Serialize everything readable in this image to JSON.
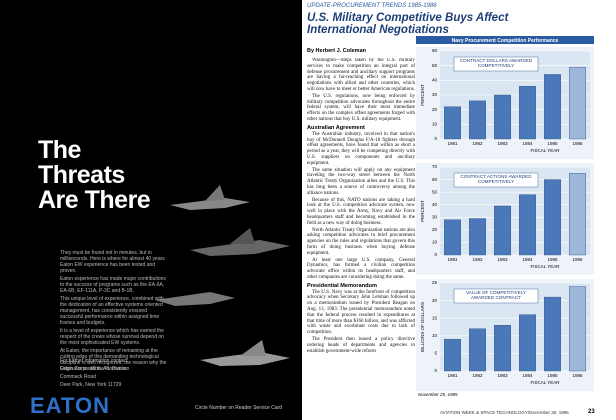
{
  "ad": {
    "headline": [
      "The",
      "Threats",
      "Are There"
    ],
    "body": [
      "They must be found not in minutes, but in milliseconds. Here is where for almost 40 years Eaton EW experience has been tested and proven.",
      "Eaton experience has made major contributions to the success of programs such as the EA-6A, EA-6B, EF-111A, P-3C and B-1B.",
      "This unique level of experience, combined with the dedication of an effective systems oriented management, has consistently ensured successful performance within assigned time frames and budgets.",
      "It is a level of experience which has earned the respect of the crews whose survival depend on the most sophisticated EW systems.",
      "At Eaton, the importance of remaining at the cutting edge of this demanding technological discipline is well recognized, the reason why the Originator is still the Innovator."
    ],
    "contact": [
      "For further information contact:",
      "Eaton Corporation, AIL Division",
      "Commack Road",
      "Deer Park, New York 11729"
    ],
    "logo": "EATON",
    "footer": "Circle Number on Reader Service Card"
  },
  "article": {
    "kicker": "UPDATE-PROCUREMENT TRENDS 1985-1986",
    "title": "U.S. Military Competitive Buys Affect International Negotiations",
    "byline": "By Herbert J. Coleman",
    "blocks": [
      {
        "text": "Washington—Steps taken by the U.S. military services to make competition an integral part of defense procurement and ancillary support programs are having a far-reaching effect on international negotiations with allied and other countries, which will now have to meet or better American regulations."
      },
      {
        "text": "The U.S. regulations, now being enforced by military competition advocates throughout the entire federal system, will have their most immediate effects on the complex offset agreements forged with other nations that buy U.S. military equipment."
      },
      {
        "heading": "Australian Agreement"
      },
      {
        "text": "The Australian industry, involved in that nation's buy of McDonnell Douglas F/A-18 fighters through offset agreements, have found that within as short a period as a year, they will be competing directly with U.S. suppliers on components and ancillary equipment."
      },
      {
        "text": "The same situation will apply on any equipment traveling the two-way street between the North Atlantic Treaty Organization allies and the U.S. This has long been a source of controversy among the alliance nations."
      },
      {
        "text": "Because of this, NATO nations are taking a hard look at the U.S. competition advocate system, now well in place with the Army, Navy and Air Force headquarters staff and becoming established in the field as a new way of doing business."
      },
      {
        "text": "North Atlantic Treaty Organization nations are also asking competition advocates to brief procurement agencies on the rules and regulations that govern this form of doing business when buying defense equipment."
      },
      {
        "text": "At least one large U.S. company, General Dynamics, has formed a civilian competition advocate office within its headquarters staff, and other companies are considering doing the same."
      },
      {
        "heading": "Presidential Memorandum"
      },
      {
        "text": "The U.S. Navy was at the forefront of competition advocacy when Secretary John Lehman followed up on a memorandum issued by President Reagan on Aug. 13, 1983. The presidential memorandum noted that the federal process resulted in expenditures at that time of more than $160 billion, and was afflicted with waste and exorbitant costs due to lack of competition."
      },
      {
        "text": "The President then issued a policy directive ordering heads of departments and agencies to establish government-wide reform"
      }
    ]
  },
  "figure": {
    "title": "Navy Procurement Competition Performance",
    "date": "November 25, 1985",
    "charts": [
      {
        "type": "bar",
        "label": "CONTRACT DOLLARS AWARDED COMPETITIVELY",
        "y_label": "PERCENT",
        "x_label": "FISCAL YEAR",
        "categories": [
          "1981",
          "1982",
          "1983",
          "1984",
          "1985",
          "1986"
        ],
        "values": [
          22,
          26,
          30,
          36,
          44,
          49
        ],
        "colors": [
          "#4a78b8",
          "#4a78b8",
          "#4a78b8",
          "#4a78b8",
          "#4a78b8",
          "#9fb8da"
        ],
        "ylim": [
          0,
          60
        ],
        "yticks": [
          0,
          10,
          20,
          30,
          40,
          50,
          60
        ]
      },
      {
        "type": "bar",
        "label": "CONTRACT ACTIONS AWARDED COMPETITIVELY",
        "y_label": "PERCENT",
        "x_label": "FISCAL YEAR",
        "categories": [
          "1981",
          "1982",
          "1983",
          "1984",
          "1985",
          "1986"
        ],
        "values": [
          28,
          29,
          39,
          48,
          60,
          65
        ],
        "colors": [
          "#4a78b8",
          "#4a78b8",
          "#4a78b8",
          "#4a78b8",
          "#4a78b8",
          "#9fb8da"
        ],
        "ylim": [
          0,
          70
        ],
        "yticks": [
          0,
          10,
          20,
          30,
          40,
          50,
          60,
          70
        ]
      },
      {
        "type": "bar",
        "label": "VALUE OF COMPETITIVELY AWARDED CONTRACT",
        "y_label": "BILLIONS OF DOLLARS",
        "x_label": "FISCAL YEAR",
        "categories": [
          "1981",
          "1982",
          "1983",
          "1984",
          "1985",
          "1986"
        ],
        "values": [
          9,
          12,
          13,
          16,
          21,
          24
        ],
        "colors": [
          "#4a78b8",
          "#4a78b8",
          "#4a78b8",
          "#4a78b8",
          "#4a78b8",
          "#9fb8da"
        ],
        "ylim": [
          0,
          25
        ],
        "yticks": [
          0,
          5,
          10,
          15,
          20,
          25
        ]
      }
    ]
  },
  "footer": {
    "publication": "AVIATION WEEK & SPACE TECHNOLOGY/December 30, 1985",
    "page": "23"
  }
}
